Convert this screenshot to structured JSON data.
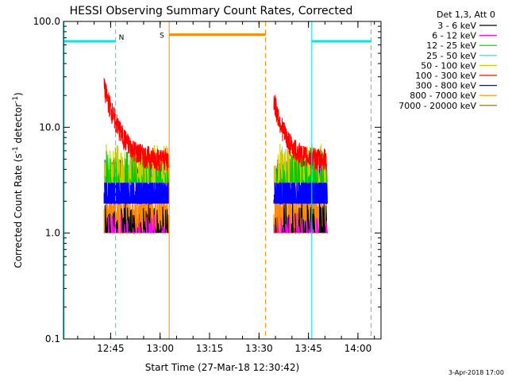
{
  "chart_data": {
    "type": "line",
    "title": "HESSI Observing Summary Count Rates, Corrected",
    "xlabel": "Start Time (27-Mar-18 12:30:42)",
    "ylabel_main": "Corrected Count Rate (s",
    "ylabel_exp1": "-1",
    "ylabel_mid": " detector",
    "ylabel_exp2": "-1",
    "ylabel_end": ")",
    "y_scale": "log",
    "ylim": [
      0.1,
      100
    ],
    "xlim": [
      "12:30:42",
      "14:07:00"
    ],
    "x_ticks": [
      "12:45",
      "13:00",
      "13:15",
      "13:30",
      "13:45",
      "14:00"
    ],
    "y_ticks": [
      "0.1",
      "1.0",
      "10.0",
      "100.0"
    ],
    "legend_header": "Det 1,3, Att 0",
    "legend_placement": "right",
    "series": [
      {
        "name": "3 - 6 keV",
        "color": "#000000"
      },
      {
        "name": "6 - 12 keV",
        "color": "#ff00ff"
      },
      {
        "name": "12 - 25 keV",
        "color": "#00cc00"
      },
      {
        "name": "25 - 50 keV",
        "color": "#00e5e5"
      },
      {
        "name": "50 - 100 keV",
        "color": "#cccc00"
      },
      {
        "name": "100 - 300 keV",
        "color": "#ff0000"
      },
      {
        "name": "300 - 800 keV",
        "color": "#0000ff"
      },
      {
        "name": "800 - 7000 keV",
        "color": "#ff8800"
      },
      {
        "name": "7000 - 20000 keV",
        "color": "#8b6914"
      }
    ],
    "segments": [
      {
        "start": "12:43:00",
        "end": "13:02:30"
      },
      {
        "start": "13:34:30",
        "end": "13:50:30"
      }
    ],
    "markers": [
      {
        "label": "N",
        "color": "#00e5e5"
      },
      {
        "label": "S",
        "color": "#ff8800"
      }
    ],
    "night_bars_level": 65,
    "saa_bar_level": 75,
    "red_peak_first": 24,
    "red_peak_second": 18
  },
  "timestamp": "3-Apr-2018 17:00"
}
